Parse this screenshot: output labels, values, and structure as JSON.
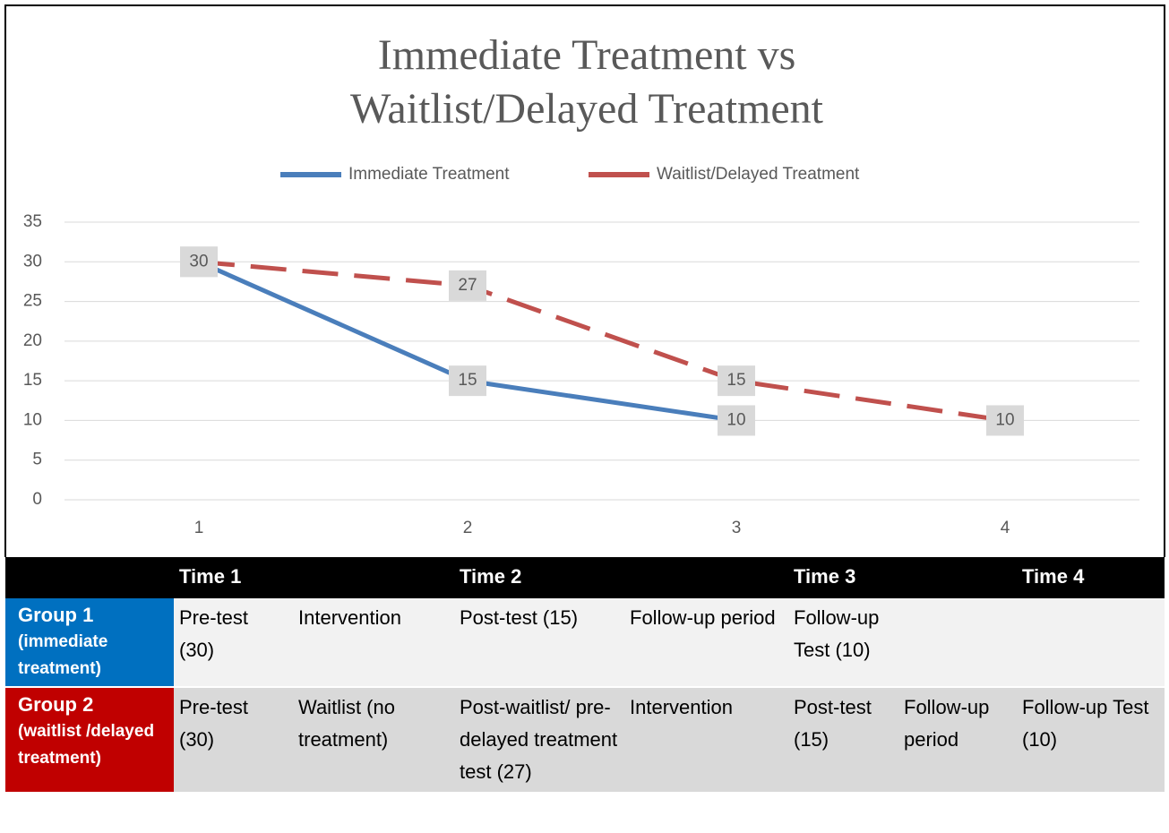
{
  "chart_data": {
    "type": "line",
    "title": "Immediate Treatment vs Waitlist/Delayed Treatment",
    "categories": [
      "1",
      "2",
      "3",
      "4"
    ],
    "series": [
      {
        "name": "Immediate Treatment",
        "color": "#4a7ebb",
        "dash": false,
        "values": [
          30,
          15,
          10,
          null
        ]
      },
      {
        "name": "Waitlist/Delayed Treatment",
        "color": "#c0504d",
        "dash": true,
        "values": [
          30,
          27,
          15,
          10
        ]
      }
    ],
    "ylim": [
      0,
      35
    ],
    "yticks": [
      0,
      5,
      10,
      15,
      20,
      25,
      30,
      35
    ],
    "grid": true,
    "data_labels": true,
    "legend": "top"
  },
  "table": {
    "header": [
      null,
      "Time 1",
      null,
      "Time 2",
      null,
      "Time 3",
      null,
      "Time 4"
    ],
    "rows": [
      {
        "group": "Group 1",
        "note": "(immediate treatment)",
        "color": "#0070c0",
        "background": "#f2f2f2",
        "cells": [
          "Pre-test (30)",
          "Intervention",
          "Post-test (15)",
          "Follow-up period",
          "Follow-up Test (10)",
          null,
          null
        ]
      },
      {
        "group": "Group 2",
        "note": "(waitlist /delayed treatment)",
        "color": "#c00000",
        "background": "#d9d9d9",
        "cells": [
          "Pre-test (30)",
          "Waitlist (no treatment)",
          "Post-waitlist/ pre-delayed treatment test (27)",
          "Intervention",
          "Post-test (15)",
          "Follow-up period",
          "Follow-up Test (10)"
        ]
      }
    ]
  }
}
